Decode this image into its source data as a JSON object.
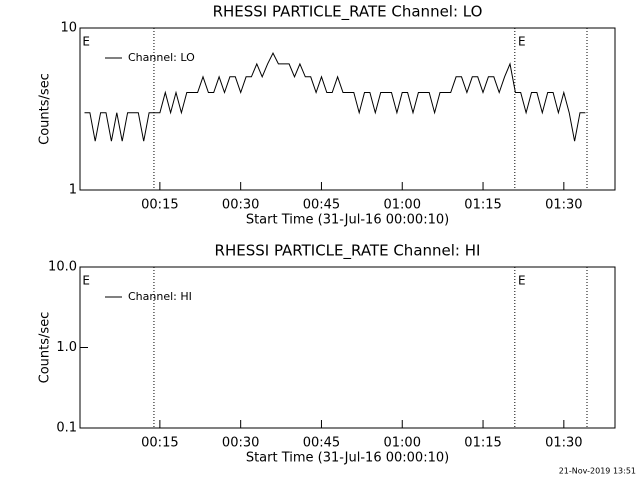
{
  "chart_data": [
    {
      "type": "line",
      "title": "RHESSI PARTICLE_RATE Channel: LO",
      "xlabel": "Start Time (31-Jul-16 00:00:10)",
      "ylabel": "Counts/sec",
      "log_y": true,
      "ylim": [
        1,
        10
      ],
      "yticks": [
        1,
        10
      ],
      "xlim": [
        0.17,
        99.5
      ],
      "xticks": [
        {
          "value": 15,
          "label": "00:15"
        },
        {
          "value": 30,
          "label": "00:30"
        },
        {
          "value": 45,
          "label": "00:45"
        },
        {
          "value": 60,
          "label": "01:00"
        },
        {
          "value": 75,
          "label": "01:15"
        },
        {
          "value": 90,
          "label": "01:30"
        }
      ],
      "vlines": [
        13.9,
        80.9,
        94.3
      ],
      "annotations": [
        {
          "text": "E",
          "x": 0.6
        },
        {
          "text": "E",
          "x": 81.5
        }
      ],
      "series": [
        {
          "name": "Channel: LO",
          "color": "#000000",
          "x": [
            1,
            2,
            3,
            4,
            5,
            6,
            7,
            8,
            9,
            10,
            11,
            12,
            13,
            14,
            15,
            16,
            17,
            18,
            19,
            20,
            21,
            22,
            23,
            24,
            25,
            26,
            27,
            28,
            29,
            30,
            31,
            32,
            33,
            34,
            35,
            36,
            37,
            38,
            39,
            40,
            41,
            42,
            43,
            44,
            45,
            46,
            47,
            48,
            49,
            50,
            51,
            52,
            53,
            54,
            55,
            56,
            57,
            58,
            59,
            60,
            61,
            62,
            63,
            64,
            65,
            66,
            67,
            68,
            69,
            70,
            71,
            72,
            73,
            74,
            75,
            76,
            77,
            78,
            79,
            80,
            81,
            82,
            83,
            84,
            85,
            86,
            87,
            88,
            89,
            90,
            91,
            92,
            93,
            94
          ],
          "values": [
            3,
            3,
            2,
            3,
            3,
            2,
            3,
            2,
            3,
            3,
            3,
            2,
            3,
            3,
            3,
            4,
            3,
            4,
            3,
            4,
            4,
            4,
            5,
            4,
            4,
            5,
            4,
            5,
            5,
            4,
            5,
            5,
            6,
            5,
            6,
            7,
            6,
            6,
            6,
            5,
            6,
            5,
            5,
            4,
            5,
            4,
            4,
            5,
            4,
            4,
            4,
            3,
            4,
            4,
            3,
            4,
            4,
            4,
            3,
            4,
            4,
            3,
            4,
            4,
            4,
            3,
            4,
            4,
            4,
            5,
            5,
            4,
            5,
            5,
            4,
            5,
            5,
            4,
            5,
            6,
            4,
            4,
            3,
            4,
            4,
            3,
            4,
            4,
            3,
            4,
            3,
            2,
            3,
            3
          ]
        }
      ]
    },
    {
      "type": "line",
      "title": "RHESSI PARTICLE_RATE Channel: HI",
      "xlabel": "Start Time (31-Jul-16 00:00:10)",
      "ylabel": "Counts/sec",
      "log_y": true,
      "ylim": [
        0.1,
        10
      ],
      "yticks": [
        0.1,
        {
          "value": 1,
          "label": "1.0"
        },
        {
          "value": 10,
          "label": "10.0"
        }
      ],
      "xlim": [
        0.17,
        99.5
      ],
      "xticks": [
        {
          "value": 15,
          "label": "00:15"
        },
        {
          "value": 30,
          "label": "00:30"
        },
        {
          "value": 45,
          "label": "00:45"
        },
        {
          "value": 60,
          "label": "01:00"
        },
        {
          "value": 75,
          "label": "01:15"
        },
        {
          "value": 90,
          "label": "01:30"
        }
      ],
      "vlines": [
        13.9,
        80.9,
        94.3
      ],
      "annotations": [
        {
          "text": "E",
          "x": 0.6
        },
        {
          "text": "E",
          "x": 81.5
        }
      ],
      "series": [
        {
          "name": "Channel: HI",
          "color": "#000000",
          "x": [],
          "values": []
        }
      ]
    }
  ],
  "footer": "21-Nov-2019 13:51"
}
